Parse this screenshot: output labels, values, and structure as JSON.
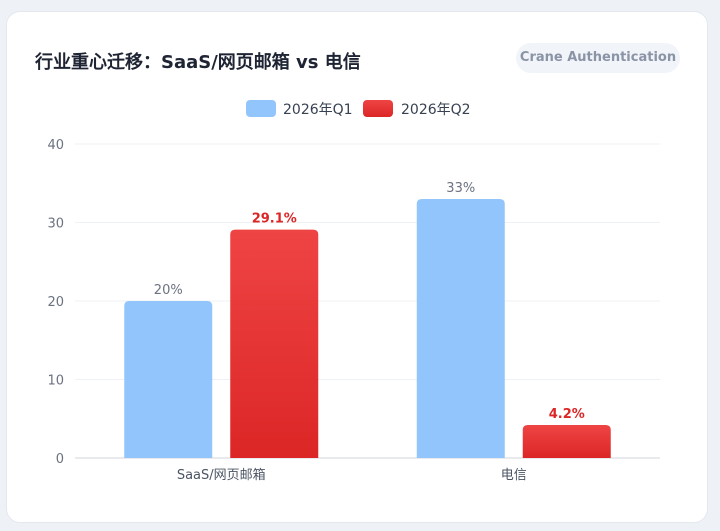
{
  "card": {
    "title": "行业重心迁移：SaaS/网页邮箱 vs 电信",
    "badge": "Crane Authentication"
  },
  "colors": {
    "q1": "#93c5fd",
    "q2_top": "#ef4444",
    "q2_bottom": "#dc2626",
    "grid": "#eef1f5",
    "axis": "#d1d5db"
  },
  "chart_data": {
    "type": "bar",
    "title": "行业重心迁移：SaaS/网页邮箱 vs 电信",
    "categories": [
      "SaaS/网页邮箱",
      "电信"
    ],
    "series": [
      {
        "name": "2026年Q1",
        "values": [
          20,
          33
        ],
        "labels": [
          "20%",
          "33%"
        ]
      },
      {
        "name": "2026年Q2",
        "values": [
          29.1,
          4.2
        ],
        "labels": [
          "29.1%",
          "4.2%"
        ]
      }
    ],
    "ylim": [
      0,
      40
    ],
    "yticks": [
      "0",
      "10",
      "20",
      "30",
      "40"
    ],
    "grid": true,
    "legend": "top-center"
  }
}
